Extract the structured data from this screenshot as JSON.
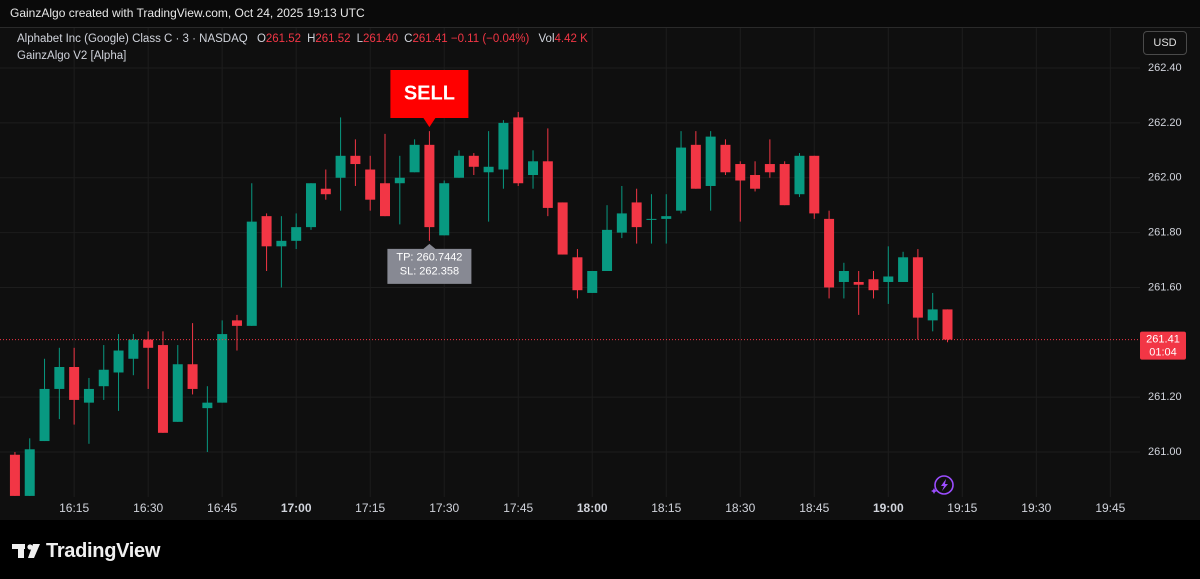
{
  "chart_data": {
    "type": "candlestick",
    "attribution": "GainzAlgo created with TradingView.com, Oct 24, 2025 19:13 UTC",
    "symbol": "Alphabet Inc (Google) Class C · 3 · NASDAQ",
    "ohlc_legend": [
      {
        "label": "O",
        "value": "261.52"
      },
      {
        "label": "H",
        "value": "261.52"
      },
      {
        "label": "L",
        "value": "261.40"
      },
      {
        "label": "C",
        "value": "261.41"
      }
    ],
    "change": "−0.11 (−0.04%)",
    "volume": {
      "label": "Vol",
      "value": "4.42 K"
    },
    "indicator": "GainzAlgo V2 [Alpha]",
    "currency": "USD",
    "logo": "TradingView",
    "up_color": "#089981",
    "down_color": "#f23645",
    "x": [
      "16:03",
      "16:06",
      "16:09",
      "16:12",
      "16:15",
      "16:18",
      "16:21",
      "16:24",
      "16:27",
      "16:30",
      "16:33",
      "16:36",
      "16:39",
      "16:42",
      "16:45",
      "16:48",
      "16:51",
      "16:54",
      "16:57",
      "17:00",
      "17:03",
      "17:06",
      "17:09",
      "17:12",
      "17:15",
      "17:18",
      "17:21",
      "17:24",
      "17:27",
      "17:30",
      "17:33",
      "17:36",
      "17:39",
      "17:42",
      "17:45",
      "17:48",
      "17:51",
      "17:54",
      "17:57",
      "18:00",
      "18:03",
      "18:06",
      "18:09",
      "18:12",
      "18:15",
      "18:18",
      "18:21",
      "18:24",
      "18:27",
      "18:30",
      "18:33",
      "18:36",
      "18:39",
      "18:42",
      "18:45",
      "18:48",
      "18:51",
      "18:54",
      "18:57",
      "19:00",
      "19:03",
      "19:06",
      "19:09",
      "19:12"
    ],
    "open": [
      260.99,
      260.84,
      261.04,
      261.23,
      261.31,
      261.18,
      261.24,
      261.29,
      261.34,
      261.41,
      261.39,
      261.11,
      261.32,
      261.16,
      261.18,
      261.48,
      261.46,
      261.86,
      261.75,
      261.77,
      261.82,
      261.96,
      262.0,
      262.08,
      262.03,
      261.98,
      261.98,
      262.02,
      262.12,
      261.79,
      262.0,
      262.08,
      262.02,
      262.03,
      262.22,
      262.01,
      262.06,
      261.91,
      261.71,
      261.58,
      261.66,
      261.8,
      261.91,
      261.85,
      261.85,
      261.88,
      262.12,
      261.97,
      262.12,
      262.05,
      262.01,
      262.05,
      262.05,
      261.94,
      262.08,
      261.85,
      261.62,
      261.62,
      261.63,
      261.62,
      261.62,
      261.71,
      261.48,
      261.52
    ],
    "high": [
      261.0,
      261.05,
      261.34,
      261.38,
      261.38,
      261.27,
      261.39,
      261.43,
      261.43,
      261.44,
      261.44,
      261.39,
      261.47,
      261.24,
      261.48,
      261.5,
      261.98,
      261.87,
      261.86,
      261.87,
      261.98,
      262.03,
      262.22,
      262.14,
      262.08,
      262.16,
      262.08,
      262.14,
      262.17,
      261.99,
      262.1,
      262.09,
      262.17,
      262.21,
      262.24,
      262.1,
      262.18,
      261.91,
      261.74,
      261.66,
      261.9,
      261.97,
      261.96,
      261.94,
      261.94,
      262.17,
      262.17,
      262.17,
      262.14,
      262.06,
      262.06,
      262.14,
      262.06,
      262.09,
      262.08,
      261.88,
      261.69,
      261.66,
      261.66,
      261.75,
      261.73,
      261.74,
      261.58,
      261.52
    ],
    "low": [
      260.84,
      260.84,
      261.04,
      261.12,
      261.1,
      261.03,
      261.19,
      261.15,
      261.28,
      261.23,
      261.07,
      261.11,
      261.21,
      261.0,
      261.18,
      261.37,
      261.46,
      261.66,
      261.6,
      261.74,
      261.81,
      261.92,
      261.88,
      261.97,
      261.88,
      261.86,
      261.83,
      262.02,
      261.77,
      261.79,
      262.0,
      262.01,
      261.84,
      261.96,
      261.97,
      261.96,
      261.86,
      261.72,
      261.56,
      261.58,
      261.66,
      261.78,
      261.76,
      261.76,
      261.76,
      261.87,
      261.96,
      261.88,
      262.01,
      261.84,
      261.95,
      262.0,
      261.9,
      261.93,
      261.85,
      261.56,
      261.56,
      261.5,
      261.56,
      261.54,
      261.62,
      261.41,
      261.44,
      261.4
    ],
    "close": [
      260.84,
      261.01,
      261.23,
      261.31,
      261.19,
      261.23,
      261.3,
      261.37,
      261.41,
      261.38,
      261.07,
      261.32,
      261.23,
      261.18,
      261.43,
      261.46,
      261.84,
      261.75,
      261.77,
      261.82,
      261.98,
      261.94,
      262.08,
      262.05,
      261.92,
      261.86,
      262.0,
      262.12,
      261.82,
      261.98,
      262.08,
      262.04,
      262.04,
      262.2,
      261.98,
      262.06,
      261.89,
      261.72,
      261.59,
      261.66,
      261.81,
      261.87,
      261.82,
      261.85,
      261.86,
      262.11,
      261.96,
      262.15,
      262.02,
      261.99,
      261.96,
      262.02,
      261.9,
      262.08,
      261.87,
      261.6,
      261.66,
      261.61,
      261.59,
      261.64,
      261.71,
      261.49,
      261.52,
      261.41
    ],
    "xlim": [
      "16:02",
      "19:50"
    ],
    "xticks": [
      "16:15",
      "16:30",
      "16:45",
      "17:00",
      "17:15",
      "17:30",
      "17:45",
      "18:00",
      "18:15",
      "18:30",
      "18:45",
      "19:00",
      "19:15",
      "19:30",
      "19:45"
    ],
    "ylim": [
      260.836,
      262.546
    ],
    "yticks": [
      {
        "value": 261.0,
        "label": "261.00"
      },
      {
        "value": 261.2,
        "label": "261.20"
      },
      {
        "value": 261.6,
        "label": "261.60"
      },
      {
        "value": 261.8,
        "label": "261.80"
      },
      {
        "value": 262.0,
        "label": "262.00"
      },
      {
        "value": 262.2,
        "label": "262.20"
      },
      {
        "value": 262.4,
        "label": "262.40"
      }
    ],
    "grid": true,
    "signal": {
      "label": "SELL",
      "tp": "TP: 260.7442",
      "sl": "SL: 262.358"
    },
    "countdown": "01:04"
  }
}
